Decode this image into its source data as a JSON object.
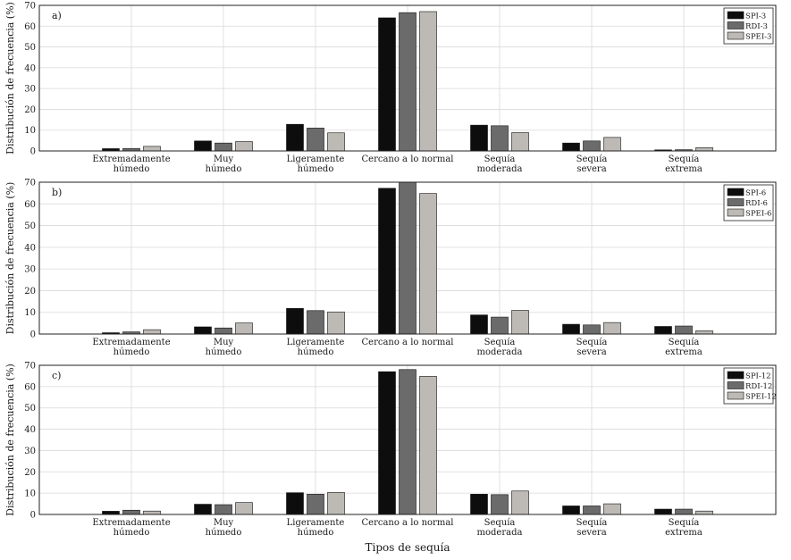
{
  "chart_data": [
    {
      "type": "bar",
      "panel_label": "a)",
      "ylabel": "Distribución de frecuencia (%)",
      "ylim": [
        0,
        70
      ],
      "yticks": [
        0,
        10,
        20,
        30,
        40,
        50,
        60,
        70
      ],
      "grid": true,
      "legend_position": "top-right",
      "categories": [
        [
          "Extremadamente",
          "húmedo"
        ],
        [
          "Muy",
          "húmedo"
        ],
        [
          "Ligeramente",
          "húmedo"
        ],
        [
          "Cercano a lo normal"
        ],
        [
          "Sequía",
          "moderada"
        ],
        [
          "Sequía",
          "severa"
        ],
        [
          "Sequía",
          "extrema"
        ]
      ],
      "series": [
        {
          "name": "SPI-3",
          "color": "#0d0d0d",
          "values": [
            1.1,
            4.8,
            12.8,
            64.0,
            12.4,
            3.8,
            0.5
          ]
        },
        {
          "name": "RDI-3",
          "color": "#6b6b6b",
          "values": [
            1.2,
            3.8,
            11.0,
            66.5,
            12.1,
            4.8,
            0.6
          ]
        },
        {
          "name": "SPEI-3",
          "color": "#bdbab6",
          "values": [
            2.2,
            4.5,
            8.7,
            67.0,
            8.8,
            6.5,
            1.6
          ]
        }
      ]
    },
    {
      "type": "bar",
      "panel_label": "b)",
      "ylabel": "Distribución de frecuencia (%)",
      "ylim": [
        0,
        70
      ],
      "yticks": [
        0,
        10,
        20,
        30,
        40,
        50,
        60,
        70
      ],
      "grid": true,
      "legend_position": "top-right",
      "categories": [
        [
          "Extremadamente",
          "húmedo"
        ],
        [
          "Muy",
          "húmedo"
        ],
        [
          "Ligeramente",
          "húmedo"
        ],
        [
          "Cercano a lo normal"
        ],
        [
          "Sequía",
          "moderada"
        ],
        [
          "Sequía",
          "severa"
        ],
        [
          "Sequía",
          "extrema"
        ]
      ],
      "series": [
        {
          "name": "SPI-6",
          "color": "#0d0d0d",
          "values": [
            0.6,
            3.3,
            11.8,
            67.2,
            8.8,
            4.5,
            3.5
          ]
        },
        {
          "name": "RDI-6",
          "color": "#6b6b6b",
          "values": [
            1.0,
            2.8,
            10.8,
            70.0,
            7.8,
            4.2,
            3.7
          ]
        },
        {
          "name": "SPEI-6",
          "color": "#bdbab6",
          "values": [
            2.0,
            5.1,
            10.2,
            64.8,
            10.9,
            5.3,
            1.5
          ]
        }
      ]
    },
    {
      "type": "bar",
      "panel_label": "c)",
      "ylabel": "Distribución de frecuencia (%)",
      "xlabel": "Tipos de sequía",
      "ylim": [
        0,
        70
      ],
      "yticks": [
        0,
        10,
        20,
        30,
        40,
        50,
        60,
        70
      ],
      "grid": true,
      "legend_position": "top-right",
      "categories": [
        [
          "Extremadamente",
          "húmedo"
        ],
        [
          "Muy",
          "húmedo"
        ],
        [
          "Ligeramente",
          "húmedo"
        ],
        [
          "Cercano a lo normal"
        ],
        [
          "Sequía",
          "moderada"
        ],
        [
          "Sequía",
          "severa"
        ],
        [
          "Sequía",
          "extrema"
        ]
      ],
      "series": [
        {
          "name": "SPI-12",
          "color": "#0d0d0d",
          "values": [
            1.5,
            4.8,
            10.2,
            67.0,
            9.5,
            4.0,
            2.5
          ]
        },
        {
          "name": "RDI-12",
          "color": "#6b6b6b",
          "values": [
            2.0,
            4.6,
            9.5,
            68.0,
            9.3,
            4.0,
            2.5
          ]
        },
        {
          "name": "SPEI-12",
          "color": "#bdbab6",
          "values": [
            1.6,
            5.6,
            10.3,
            64.8,
            11.0,
            5.0,
            1.6
          ]
        }
      ]
    }
  ]
}
